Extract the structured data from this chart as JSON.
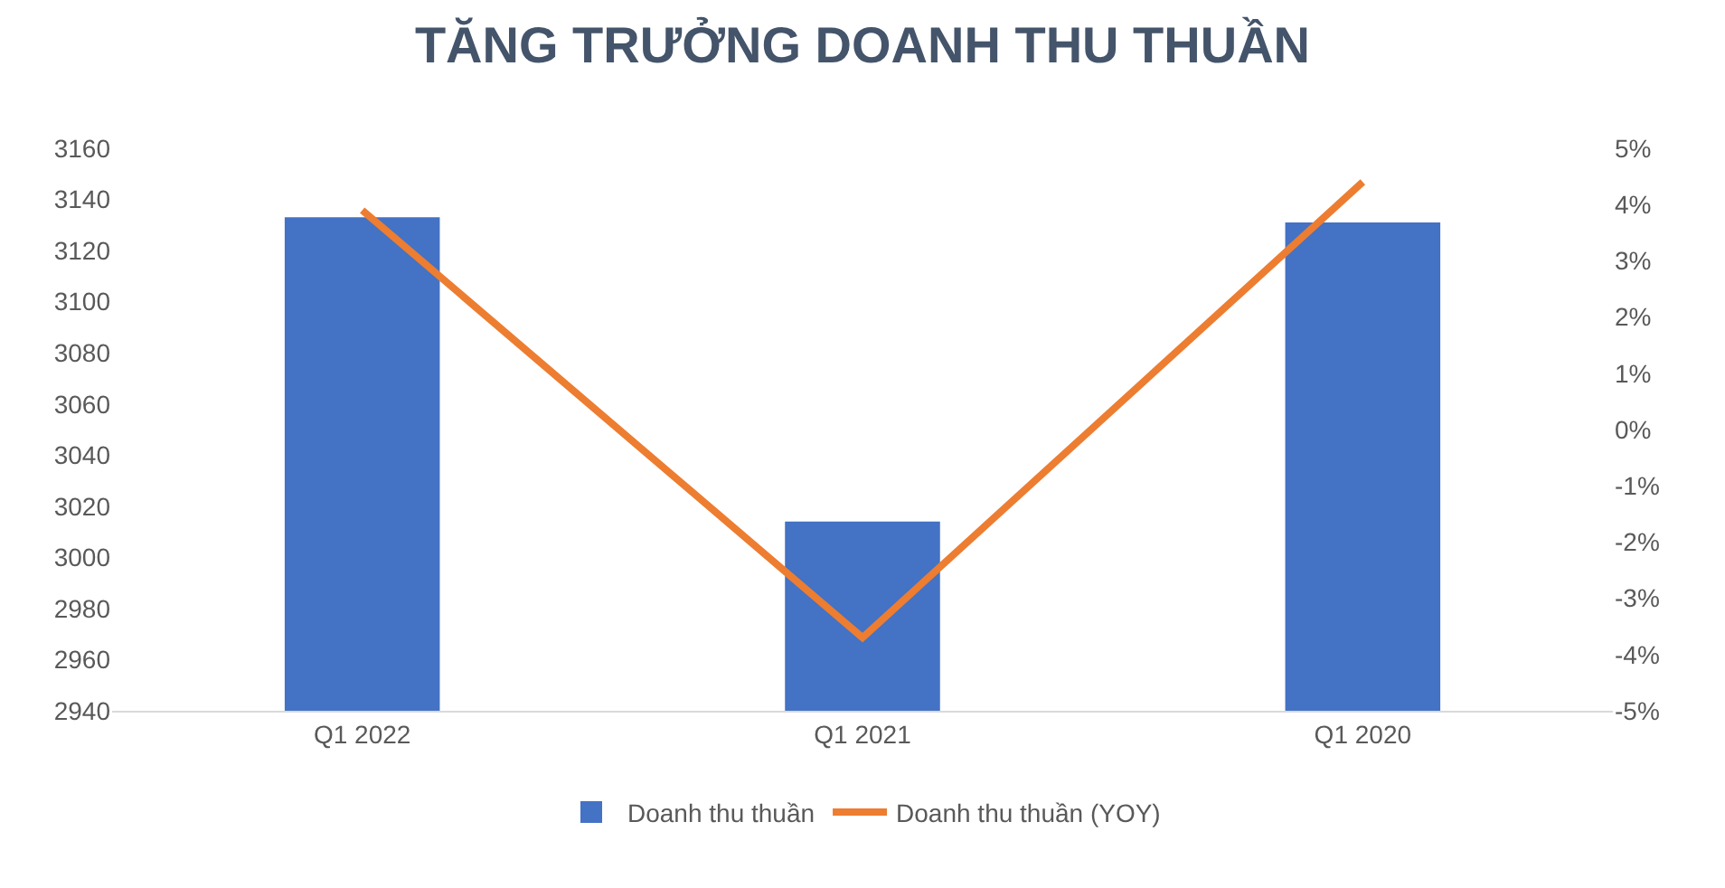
{
  "chart_data": {
    "type": "bar",
    "title": "TĂNG TRƯỞNG DOANH THU THUẦN",
    "categories": [
      "Q1 2022",
      "Q1 2021",
      "Q1 2020"
    ],
    "series": [
      {
        "name": "Doanh thu thuần",
        "color": "#4472c4",
        "values": [
          3133,
          3014,
          3131
        ]
      },
      {
        "name": "Doanh thu thuần (YOY)",
        "type": "line",
        "axis": "y2",
        "color": "#ed7d31",
        "values": [
          3.9,
          -3.7,
          4.4
        ]
      }
    ],
    "ylim": [
      2940,
      3160
    ],
    "yticks": [
      2940,
      2960,
      2980,
      3000,
      3020,
      3040,
      3060,
      3080,
      3100,
      3120,
      3140,
      3160
    ],
    "y2lim": [
      -5,
      5
    ],
    "y2ticks": [
      {
        "value": -5,
        "label": "-5%"
      },
      {
        "value": -4,
        "label": "-4%"
      },
      {
        "value": -3,
        "label": "-3%"
      },
      {
        "value": -2,
        "label": "-2%"
      },
      {
        "value": -1,
        "label": "-1%"
      },
      {
        "value": 0,
        "label": "0%"
      },
      {
        "value": 1,
        "label": "1%"
      },
      {
        "value": 2,
        "label": "2%"
      },
      {
        "value": 3,
        "label": "3%"
      },
      {
        "value": 4,
        "label": "4%"
      },
      {
        "value": 5,
        "label": "5%"
      }
    ],
    "grid": false,
    "legend": "bottom",
    "marker": "none"
  }
}
